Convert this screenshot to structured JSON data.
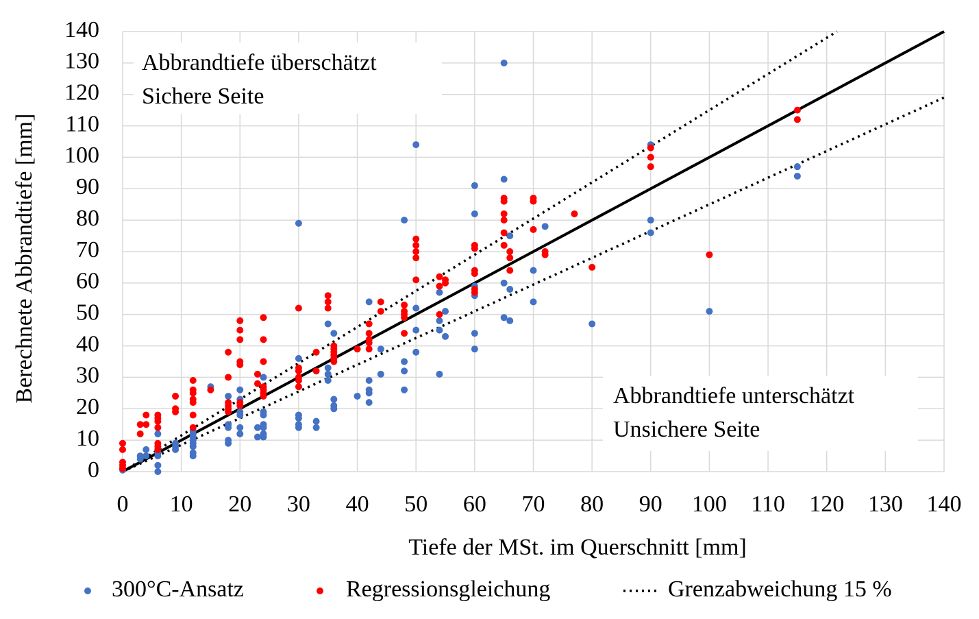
{
  "chart_data": {
    "type": "scatter",
    "xlabel": "Tiefe der MSt. im Querschnitt [mm]",
    "ylabel": "Berechnete Abbrandtiefe [mm]",
    "xlim": [
      0,
      140
    ],
    "ylim": [
      0,
      140
    ],
    "xticks": [
      0,
      10,
      20,
      30,
      40,
      50,
      60,
      70,
      80,
      90,
      100,
      110,
      120,
      130,
      140
    ],
    "yticks": [
      0,
      10,
      20,
      30,
      40,
      50,
      60,
      70,
      80,
      90,
      100,
      110,
      120,
      130,
      140
    ],
    "grid": true,
    "legend": "bottom",
    "annotations": [
      {
        "lines": [
          "Abbrandtiefe überschätzt",
          "Sichere Seite"
        ],
        "corner": "top-left"
      },
      {
        "lines": [
          "Abbrandtiefe unterschätzt",
          "Unsichere Seite"
        ],
        "corner": "bottom-right"
      }
    ],
    "series": [
      {
        "name": "300°C-Ansatz",
        "type": "scatter",
        "color": "#4472c4",
        "x": [
          0,
          0,
          3,
          3,
          4,
          4,
          6,
          6,
          6,
          6,
          6,
          6,
          9,
          9,
          9,
          12,
          12,
          12,
          12,
          12,
          12,
          12,
          12,
          15,
          18,
          18,
          18,
          18,
          18,
          20,
          20,
          20,
          20,
          20,
          20,
          23,
          23,
          24,
          24,
          24,
          24,
          24,
          24,
          24,
          30,
          30,
          30,
          30,
          30,
          30,
          33,
          33,
          35,
          35,
          35,
          35,
          36,
          36,
          36,
          36,
          40,
          42,
          42,
          42,
          42,
          42,
          44,
          44,
          48,
          48,
          48,
          48,
          50,
          50,
          50,
          50,
          54,
          54,
          54,
          54,
          55,
          55,
          60,
          60,
          60,
          60,
          60,
          60,
          65,
          65,
          65,
          65,
          65,
          66,
          66,
          66,
          70,
          70,
          72,
          80,
          90,
          90,
          90,
          100,
          115,
          115
        ],
        "y": [
          1,
          0.5,
          4,
          5,
          5,
          7,
          0,
          2,
          5,
          6,
          7,
          12,
          7,
          9,
          8,
          5,
          6,
          8,
          9,
          10,
          11,
          12,
          13,
          27,
          9,
          10,
          14,
          15,
          24,
          12,
          14,
          18,
          19,
          23,
          26,
          11,
          14,
          11,
          12,
          14,
          15,
          18,
          19,
          30,
          14,
          15,
          17,
          18,
          36,
          79,
          14,
          16,
          29,
          31,
          33,
          47,
          20,
          21,
          23,
          44,
          24,
          22,
          25,
          26,
          29,
          54,
          31,
          39,
          26,
          32,
          35,
          80,
          38,
          45,
          52,
          104,
          31,
          45,
          48,
          57,
          43,
          51,
          39,
          44,
          56,
          59,
          82,
          91,
          49,
          60,
          86,
          93,
          130,
          48,
          58,
          75,
          54,
          64,
          78,
          47,
          76,
          80,
          104,
          51,
          94,
          97
        ]
      },
      {
        "name": "Regressionsgleichung",
        "type": "scatter",
        "color": "#ff0000",
        "x": [
          0,
          0,
          0,
          0,
          0,
          3,
          3,
          4,
          4,
          6,
          6,
          6,
          6,
          6,
          6,
          6,
          9,
          9,
          9,
          12,
          12,
          12,
          12,
          12,
          12,
          12,
          15,
          18,
          18,
          18,
          18,
          18,
          18,
          20,
          20,
          20,
          20,
          20,
          20,
          20,
          23,
          23,
          24,
          24,
          24,
          24,
          24,
          24,
          24,
          30,
          30,
          30,
          30,
          30,
          30,
          33,
          33,
          35,
          35,
          35,
          36,
          36,
          36,
          36,
          36,
          36,
          40,
          42,
          42,
          42,
          42,
          42,
          44,
          44,
          48,
          48,
          48,
          48,
          48,
          50,
          50,
          50,
          50,
          50,
          54,
          54,
          54,
          55,
          55,
          60,
          60,
          60,
          60,
          60,
          60,
          65,
          65,
          65,
          65,
          65,
          65,
          66,
          66,
          66,
          70,
          70,
          70,
          72,
          72,
          77,
          80,
          90,
          90,
          90,
          100,
          115,
          115
        ],
        "y": [
          1,
          2,
          3,
          7,
          9,
          12,
          15,
          15,
          18,
          7,
          8,
          9,
          14,
          16,
          17,
          18,
          19,
          20,
          24,
          14,
          18,
          22,
          23,
          25,
          26,
          29,
          26,
          19,
          20,
          21,
          22,
          30,
          38,
          21,
          22,
          34,
          35,
          42,
          45,
          48,
          28,
          31,
          24,
          25,
          26,
          27,
          35,
          42,
          49,
          27,
          29,
          30,
          32,
          33,
          52,
          32,
          38,
          52,
          54,
          56,
          35,
          36,
          37,
          38,
          39,
          40,
          39,
          39,
          41,
          42,
          44,
          47,
          51,
          54,
          44,
          49,
          50,
          51,
          53,
          61,
          68,
          70,
          72,
          74,
          50,
          59,
          62,
          60,
          61,
          57,
          58,
          63,
          64,
          71,
          72,
          72,
          76,
          80,
          82,
          86,
          87,
          64,
          68,
          70,
          77,
          86,
          87,
          69,
          70,
          82,
          65,
          97,
          100,
          103,
          69,
          112,
          115
        ]
      },
      {
        "name": "Grenzabweichung 15 %",
        "type": "line",
        "dash": "dotted",
        "color": "#000000",
        "x": [
          0,
          121.74
        ],
        "y": [
          0,
          140
        ]
      },
      {
        "type": "line",
        "dash": "dotted",
        "color": "#000000",
        "x": [
          0,
          140
        ],
        "y": [
          0,
          119
        ]
      },
      {
        "type": "line",
        "dash": "solid",
        "color": "#000000",
        "x": [
          0,
          140
        ],
        "y": [
          0,
          140
        ]
      }
    ]
  }
}
